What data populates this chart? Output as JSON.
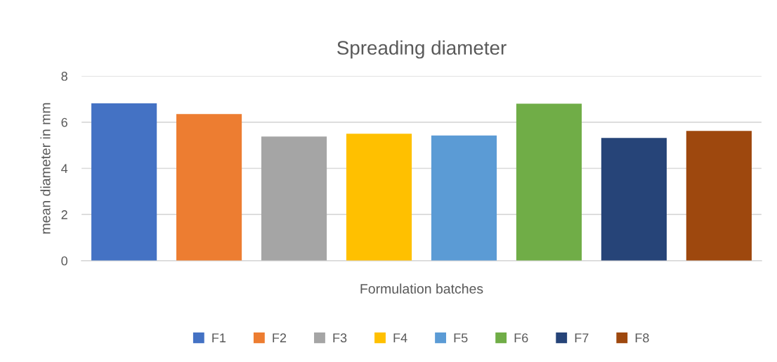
{
  "chart_data": {
    "type": "bar",
    "title": "Spreading diameter",
    "xlabel": "Formulation batches",
    "ylabel": "mean diameter in mm",
    "categories": [
      null
    ],
    "series": [
      {
        "name": "F1",
        "color": "#4472c4",
        "values": [
          6.82
        ]
      },
      {
        "name": "F2",
        "color": "#ed7d31",
        "values": [
          6.35
        ]
      },
      {
        "name": "F3",
        "color": "#a5a5a5",
        "values": [
          5.38
        ]
      },
      {
        "name": "F4",
        "color": "#ffc000",
        "values": [
          5.5
        ]
      },
      {
        "name": "F5",
        "color": "#5b9bd5",
        "values": [
          5.42
        ]
      },
      {
        "name": "F6",
        "color": "#70ad47",
        "values": [
          6.8
        ]
      },
      {
        "name": "F7",
        "color": "#264478",
        "values": [
          5.32
        ]
      },
      {
        "name": "F8",
        "color": "#9e480e",
        "values": [
          5.62
        ]
      }
    ],
    "ylim": [
      0,
      8
    ],
    "yticks": [
      0,
      2,
      4,
      6,
      8
    ],
    "grid": "y",
    "legend": "bottom"
  }
}
